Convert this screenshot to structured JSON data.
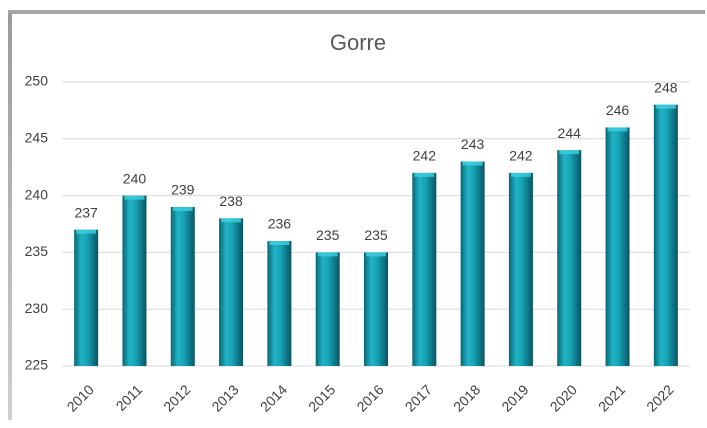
{
  "chart_data": {
    "type": "bar",
    "title": "Gorre",
    "categories": [
      "2010",
      "2011",
      "2012",
      "2013",
      "2014",
      "2015",
      "2016",
      "2017",
      "2018",
      "2019",
      "2020",
      "2021",
      "2022"
    ],
    "values": [
      237,
      240,
      239,
      238,
      236,
      235,
      235,
      242,
      243,
      242,
      244,
      246,
      248
    ],
    "color": "#17a2b3",
    "ylim": [
      225,
      250
    ],
    "yticks": [
      225,
      230,
      235,
      240,
      245,
      250
    ],
    "grid": true
  }
}
